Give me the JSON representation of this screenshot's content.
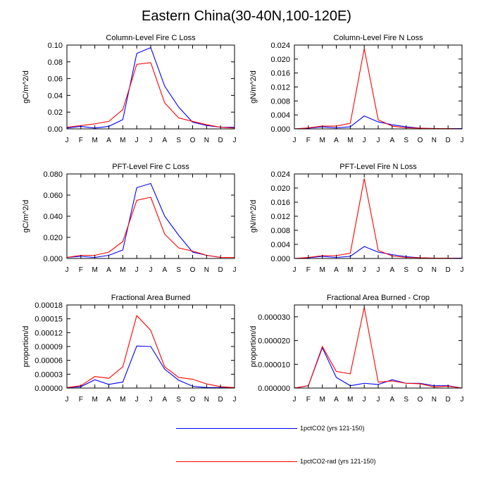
{
  "title": "Eastern China(30-40N,100-120E)",
  "months": [
    "J",
    "F",
    "M",
    "A",
    "M",
    "J",
    "J",
    "A",
    "S",
    "O",
    "N",
    "D",
    "J"
  ],
  "colors": {
    "series_a": "#0000ff",
    "series_b": "#ff0000",
    "axis": "#000000"
  },
  "legend": [
    {
      "label": "1pctCO2 (yrs 121-150)",
      "color": "#0000ff"
    },
    {
      "label": "1pctCO2-rad (yrs 121-150)",
      "color": "#ff0000"
    }
  ],
  "chart_data": [
    {
      "type": "line",
      "title": "Column-Level Fire C Loss",
      "ylabel": "gC/m^2/d",
      "ylim": [
        0,
        0.1
      ],
      "yticks": [
        "0.00",
        "0.02",
        "0.04",
        "0.06",
        "0.08",
        "0.10"
      ],
      "series": [
        {
          "name": "1pctCO2 (yrs 121-150)",
          "values": [
            0.001,
            0.003,
            0.001,
            0.003,
            0.011,
            0.09,
            0.097,
            0.051,
            0.026,
            0.008,
            0.004,
            0.002,
            0.002
          ]
        },
        {
          "name": "1pctCO2-rad (yrs 121-150)",
          "values": [
            0.002,
            0.004,
            0.006,
            0.009,
            0.023,
            0.077,
            0.079,
            0.031,
            0.013,
            0.009,
            0.005,
            0.002,
            0.001
          ]
        }
      ]
    },
    {
      "type": "line",
      "title": "Column-Level Fire N Loss",
      "ylabel": "gN/m^2/d",
      "ylim": [
        0,
        0.024
      ],
      "yticks": [
        "0.000",
        "0.004",
        "0.008",
        "0.012",
        "0.016",
        "0.020",
        "0.024"
      ],
      "series": [
        {
          "name": "1pctCO2 (yrs 121-150)",
          "values": [
            0.0,
            0.0002,
            0.0006,
            0.0003,
            0.0006,
            0.0037,
            0.002,
            0.0012,
            0.0006,
            0.0002,
            0.0001,
            0.0001,
            0.0001
          ]
        },
        {
          "name": "1pctCO2-rad (yrs 121-150)",
          "values": [
            0.0,
            0.0003,
            0.0008,
            0.0008,
            0.0016,
            0.023,
            0.0026,
            0.0008,
            0.0003,
            0.0002,
            0.0001,
            0.0001,
            0.0
          ]
        }
      ]
    },
    {
      "type": "line",
      "title": "PFT-Level Fire C Loss",
      "ylabel": "gC/m^2/d",
      "ylim": [
        0,
        0.08
      ],
      "yticks": [
        "0.000",
        "0.020",
        "0.040",
        "0.060",
        "0.080"
      ],
      "series": [
        {
          "name": "1pctCO2 (yrs 121-150)",
          "values": [
            0.001,
            0.002,
            0.001,
            0.003,
            0.008,
            0.067,
            0.071,
            0.04,
            0.022,
            0.006,
            0.003,
            0.001,
            0.001
          ]
        },
        {
          "name": "1pctCO2-rad (yrs 121-150)",
          "values": [
            0.001,
            0.003,
            0.003,
            0.006,
            0.016,
            0.055,
            0.058,
            0.023,
            0.01,
            0.007,
            0.003,
            0.001,
            0.001
          ]
        }
      ]
    },
    {
      "type": "line",
      "title": "PFT-Level Fire N Loss",
      "ylabel": "gN/m^2/d",
      "ylim": [
        0,
        0.024
      ],
      "yticks": [
        "0.000",
        "0.004",
        "0.008",
        "0.012",
        "0.016",
        "0.020",
        "0.024"
      ],
      "series": [
        {
          "name": "1pctCO2 (yrs 121-150)",
          "values": [
            0.0,
            0.0002,
            0.0006,
            0.0003,
            0.0006,
            0.0034,
            0.0018,
            0.0011,
            0.0005,
            0.0002,
            0.0001,
            0.0001,
            0.0001
          ]
        },
        {
          "name": "1pctCO2-rad (yrs 121-150)",
          "values": [
            0.0,
            0.0003,
            0.0008,
            0.0008,
            0.0015,
            0.0227,
            0.0023,
            0.0007,
            0.0003,
            0.0002,
            0.0001,
            0.0001,
            0.0
          ]
        }
      ]
    },
    {
      "type": "line",
      "title": "Fractional Area Burned",
      "ylabel": "proportion/d",
      "ylim": [
        0,
        0.00018
      ],
      "yticks": [
        "0.00000",
        "0.00003",
        "0.00006",
        "0.00009",
        "0.00012",
        "0.00015",
        "0.00018"
      ],
      "series": [
        {
          "name": "1pctCO2 (yrs 121-150)",
          "values": [
            1e-06,
            3e-06,
            1.8e-05,
            8e-06,
            1.3e-05,
            9.1e-05,
            9e-05,
            4.1e-05,
            1.7e-05,
            4e-06,
            1e-06,
            1e-06,
            0.0
          ]
        },
        {
          "name": "1pctCO2-rad (yrs 121-150)",
          "values": [
            1e-06,
            5e-06,
            2.5e-05,
            2.1e-05,
            4.6e-05,
            0.000157,
            0.000125,
            4.6e-05,
            2.3e-05,
            1.9e-05,
            9e-06,
            3e-06,
            1e-06
          ]
        }
      ]
    },
    {
      "type": "line",
      "title": "Fractional Area Burned - Crop",
      "ylabel": "proportion/d",
      "ylim": [
        0,
        3.5e-05
      ],
      "yticks": [
        "0.000000",
        "0.000010",
        "0.000020",
        "0.000030"
      ],
      "series": [
        {
          "name": "1pctCO2 (yrs 121-150)",
          "values": [
            0.0,
            1e-06,
            1.7e-05,
            4.5e-06,
            1e-06,
            2e-06,
            1.5e-06,
            3.5e-06,
            2e-06,
            2e-06,
            1e-06,
            1e-06,
            0.0
          ]
        },
        {
          "name": "1pctCO2-rad (yrs 121-150)",
          "values": [
            0.0,
            1e-06,
            1.75e-05,
            7e-06,
            6e-06,
            3.4e-05,
            2.5e-06,
            3e-06,
            2e-06,
            1.8e-06,
            5e-07,
            8e-07,
            0.0
          ]
        }
      ]
    }
  ]
}
